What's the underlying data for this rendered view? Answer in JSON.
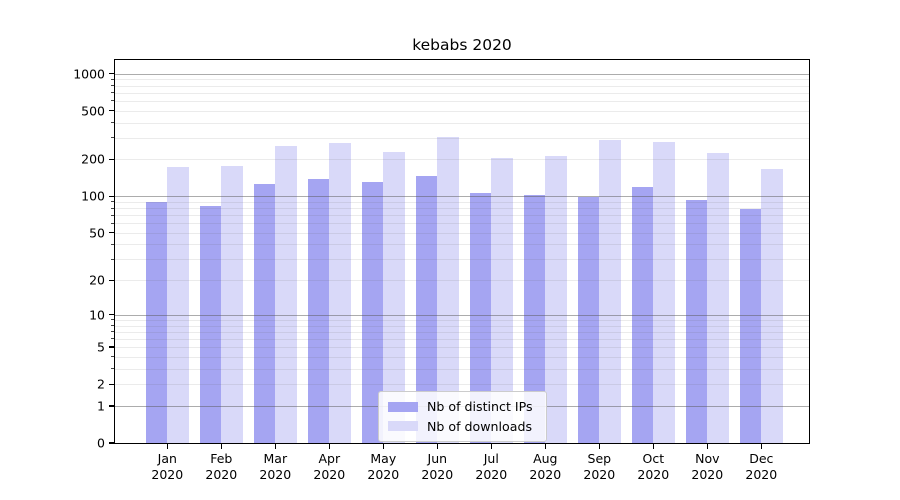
{
  "title": "kebabs 2020",
  "chart_data": {
    "type": "bar",
    "title": "kebabs 2020",
    "categories": [
      "Jan",
      "Feb",
      "Mar",
      "Apr",
      "May",
      "Jun",
      "Jul",
      "Aug",
      "Sep",
      "Oct",
      "Nov",
      "Dec"
    ],
    "category_year": "2020",
    "series": [
      {
        "name": "Nb of distinct IPs",
        "color": "#a5a5f2",
        "values": [
          90,
          83,
          125,
          139,
          131,
          146,
          107,
          103,
          98,
          120,
          93,
          78
        ]
      },
      {
        "name": "Nb of downloads",
        "color": "#d9d9f9",
        "values": [
          175,
          177,
          257,
          272,
          230,
          306,
          207,
          215,
          288,
          277,
          227,
          168
        ]
      }
    ],
    "xlabel": "",
    "ylabel": "",
    "yscale": "symlog-log1p",
    "ylim": [
      0,
      1290
    ],
    "y_ticks": [
      0,
      1,
      2,
      5,
      10,
      20,
      50,
      100,
      200,
      500,
      1000
    ],
    "grid": {
      "major_values": [
        1,
        10,
        100,
        1000
      ],
      "minor_multiples": [
        2,
        3,
        4,
        5,
        6,
        7,
        8,
        9
      ],
      "minor_decades": [
        1,
        10,
        100
      ],
      "position": "above-bars"
    },
    "legend": {
      "entries": [
        "Nb of distinct IPs",
        "Nb of downloads"
      ],
      "position": "lower-center"
    }
  },
  "colors": {
    "bar_distinct_ips": "#a5a5f2",
    "bar_downloads": "#d9d9f9",
    "axis": "#000000",
    "grid_major": "rgba(90,90,90,0.5)",
    "grid_minor": "rgba(100,100,100,0.13)",
    "legend_border": "#cccccc",
    "legend_background": "rgba(255,255,255,0.85)"
  }
}
